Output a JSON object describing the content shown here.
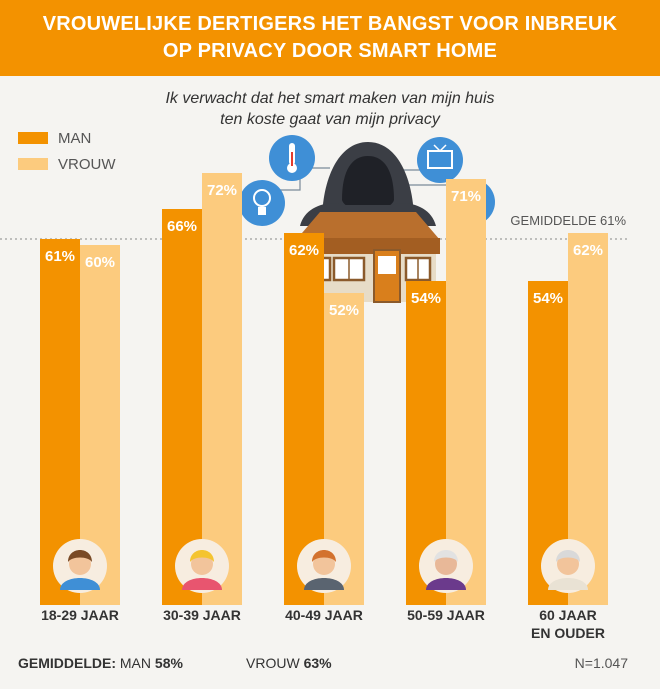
{
  "title": [
    "VROUWELIJKE DERTIGERS HET BANGST VOOR INBREUK",
    "OP PRIVACY DOOR SMART HOME"
  ],
  "subtitle": [
    "Ik verwacht dat het smart maken van mijn huis",
    "ten koste gaat van mijn privacy"
  ],
  "colors": {
    "man": "#f39200",
    "vrouw": "#fccb7e",
    "title_bg": "#f39200",
    "background": "#f5f4f1"
  },
  "chart_data": {
    "type": "bar",
    "categories": [
      [
        "18-29 JAAR"
      ],
      [
        "30-39 JAAR"
      ],
      [
        "40-49 JAAR"
      ],
      [
        "50-59 JAAR"
      ],
      [
        "60 JAAR",
        "EN OUDER"
      ]
    ],
    "series": [
      {
        "name": "MAN",
        "values": [
          61,
          66,
          62,
          54,
          54
        ],
        "labels": [
          "61%",
          "66%",
          "62%",
          "54%",
          "54%"
        ]
      },
      {
        "name": "VROUW",
        "values": [
          60,
          72,
          52,
          71,
          62
        ],
        "labels": [
          "60%",
          "72%",
          "52%",
          "71%",
          "62%"
        ]
      }
    ],
    "ylim": [
      0,
      100
    ],
    "reference_line": {
      "value": 61,
      "label": "GEMIDDELDE 61%"
    },
    "legend": "top-left"
  },
  "footer": {
    "label": "GEMIDDELDE:",
    "man_label": "MAN",
    "man_value": "58%",
    "vrouw_label": "VROUW",
    "vrouw_value": "63%",
    "n": "N=1.047"
  }
}
